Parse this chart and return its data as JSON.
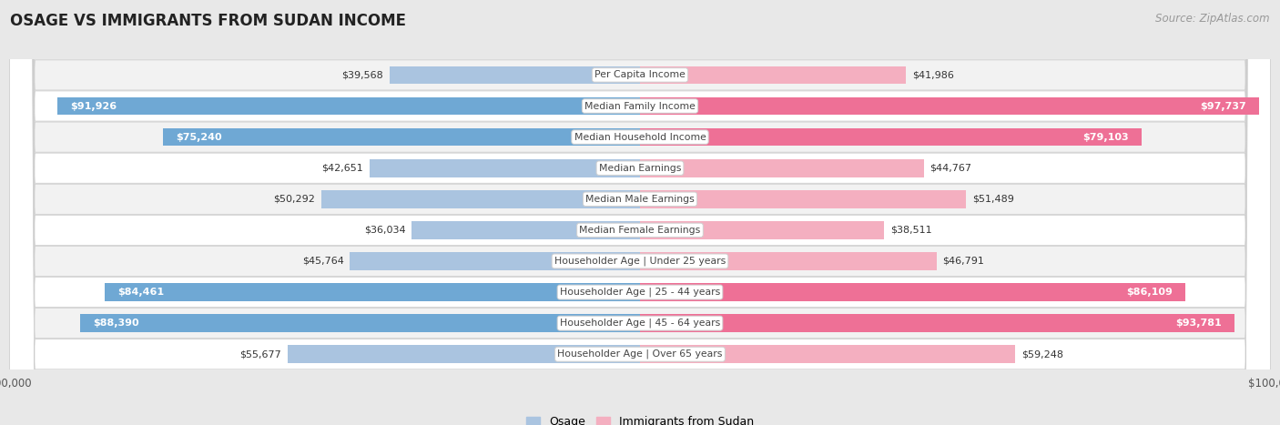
{
  "title": "OSAGE VS IMMIGRANTS FROM SUDAN INCOME",
  "source": "Source: ZipAtlas.com",
  "categories": [
    "Per Capita Income",
    "Median Family Income",
    "Median Household Income",
    "Median Earnings",
    "Median Male Earnings",
    "Median Female Earnings",
    "Householder Age | Under 25 years",
    "Householder Age | 25 - 44 years",
    "Householder Age | 45 - 64 years",
    "Householder Age | Over 65 years"
  ],
  "osage_values": [
    39568,
    91926,
    75240,
    42651,
    50292,
    36034,
    45764,
    84461,
    88390,
    55677
  ],
  "sudan_values": [
    41986,
    97737,
    79103,
    44767,
    51489,
    38511,
    46791,
    86109,
    93781,
    59248
  ],
  "osage_labels": [
    "$39,568",
    "$91,926",
    "$75,240",
    "$42,651",
    "$50,292",
    "$36,034",
    "$45,764",
    "$84,461",
    "$88,390",
    "$55,677"
  ],
  "sudan_labels": [
    "$41,986",
    "$97,737",
    "$79,103",
    "$44,767",
    "$51,489",
    "$38,511",
    "$46,791",
    "$86,109",
    "$93,781",
    "$59,248"
  ],
  "osage_color_light": "#aac4e0",
  "osage_color_solid": "#6fa8d4",
  "sudan_color_light": "#f4afc0",
  "sudan_color_solid": "#ee7096",
  "max_value": 100000,
  "bar_height": 0.58,
  "row_colors": [
    "#f2f2f2",
    "#ffffff"
  ],
  "label_fontsize": 8.0,
  "title_fontsize": 12,
  "source_fontsize": 8.5,
  "cat_fontsize": 7.8,
  "legend_labels": [
    "Osage",
    "Immigrants from Sudan"
  ],
  "osage_solid_threshold": 65000,
  "sudan_solid_threshold": 65000
}
